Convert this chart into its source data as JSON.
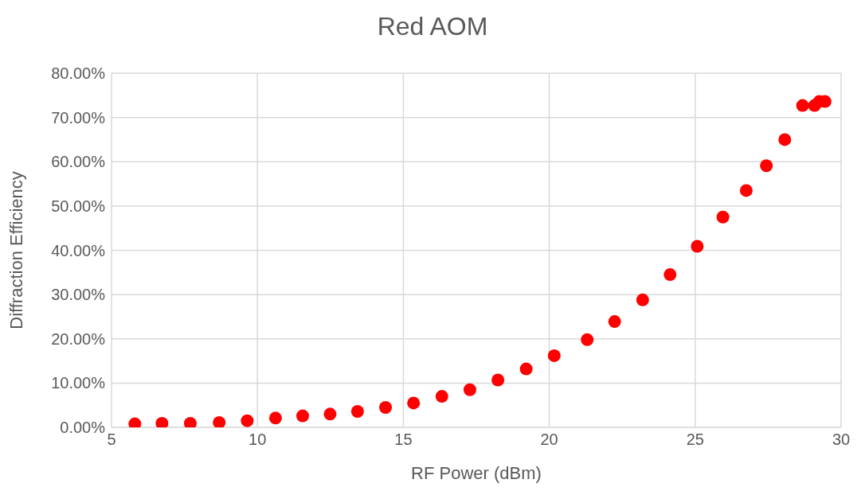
{
  "chart_data": {
    "type": "scatter",
    "title": "Red AOM",
    "xlabel": "RF Power (dBm)",
    "ylabel": "Diffraction Efficiency",
    "x": [
      5.8,
      6.73,
      7.7,
      8.69,
      9.65,
      10.62,
      11.55,
      12.49,
      13.43,
      14.39,
      15.35,
      16.32,
      17.28,
      18.24,
      19.21,
      20.17,
      21.3,
      22.24,
      23.2,
      24.14,
      25.07,
      25.95,
      26.75,
      27.44,
      28.07,
      28.68,
      29.09,
      29.25,
      29.45
    ],
    "values": [
      0.8,
      0.9,
      0.9,
      1.1,
      1.5,
      2.1,
      2.6,
      3.0,
      3.6,
      4.5,
      5.5,
      7.0,
      8.5,
      10.7,
      13.2,
      16.2,
      19.8,
      23.9,
      28.8,
      34.5,
      40.9,
      47.5,
      53.5,
      59.1,
      65.0,
      72.7,
      72.7,
      73.6,
      73.6
    ],
    "color": "#ff0000",
    "marker": "circle",
    "grid": true,
    "xlim": [
      5,
      30
    ],
    "xticks": [
      5,
      10,
      15,
      20,
      25,
      30
    ],
    "ylim": [
      0,
      80
    ],
    "yticks": [
      {
        "value": 0,
        "label": "0.00%"
      },
      {
        "value": 10,
        "label": "10.00%"
      },
      {
        "value": 20,
        "label": "20.00%"
      },
      {
        "value": 30,
        "label": "30.00%"
      },
      {
        "value": 40,
        "label": "40.00%"
      },
      {
        "value": 50,
        "label": "50.00%"
      },
      {
        "value": 60,
        "label": "60.00%"
      },
      {
        "value": 70,
        "label": "70.00%"
      },
      {
        "value": 80,
        "label": "80.00%"
      }
    ]
  }
}
